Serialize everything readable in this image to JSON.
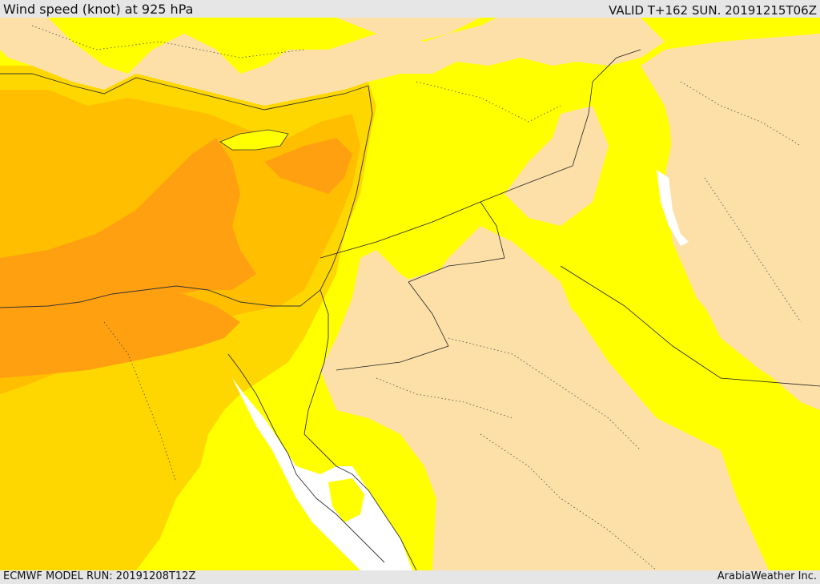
{
  "header": {
    "title": "Wind speed (knot) at 925 hPa",
    "valid_time": "VALID T+162 SUN. 20191215T06Z"
  },
  "footer": {
    "model_run": "ECMWF MODEL RUN: 20191208T12Z",
    "credit": "ArabiaWeather Inc."
  },
  "colors": {
    "calm": "#fde0a8",
    "light": "#ffff00",
    "moderate": "#ffd700",
    "fresh": "#ffbf00",
    "strong": "#ffa010",
    "sea_calm": "#ffffff",
    "frame": "#e6e6e6"
  }
}
